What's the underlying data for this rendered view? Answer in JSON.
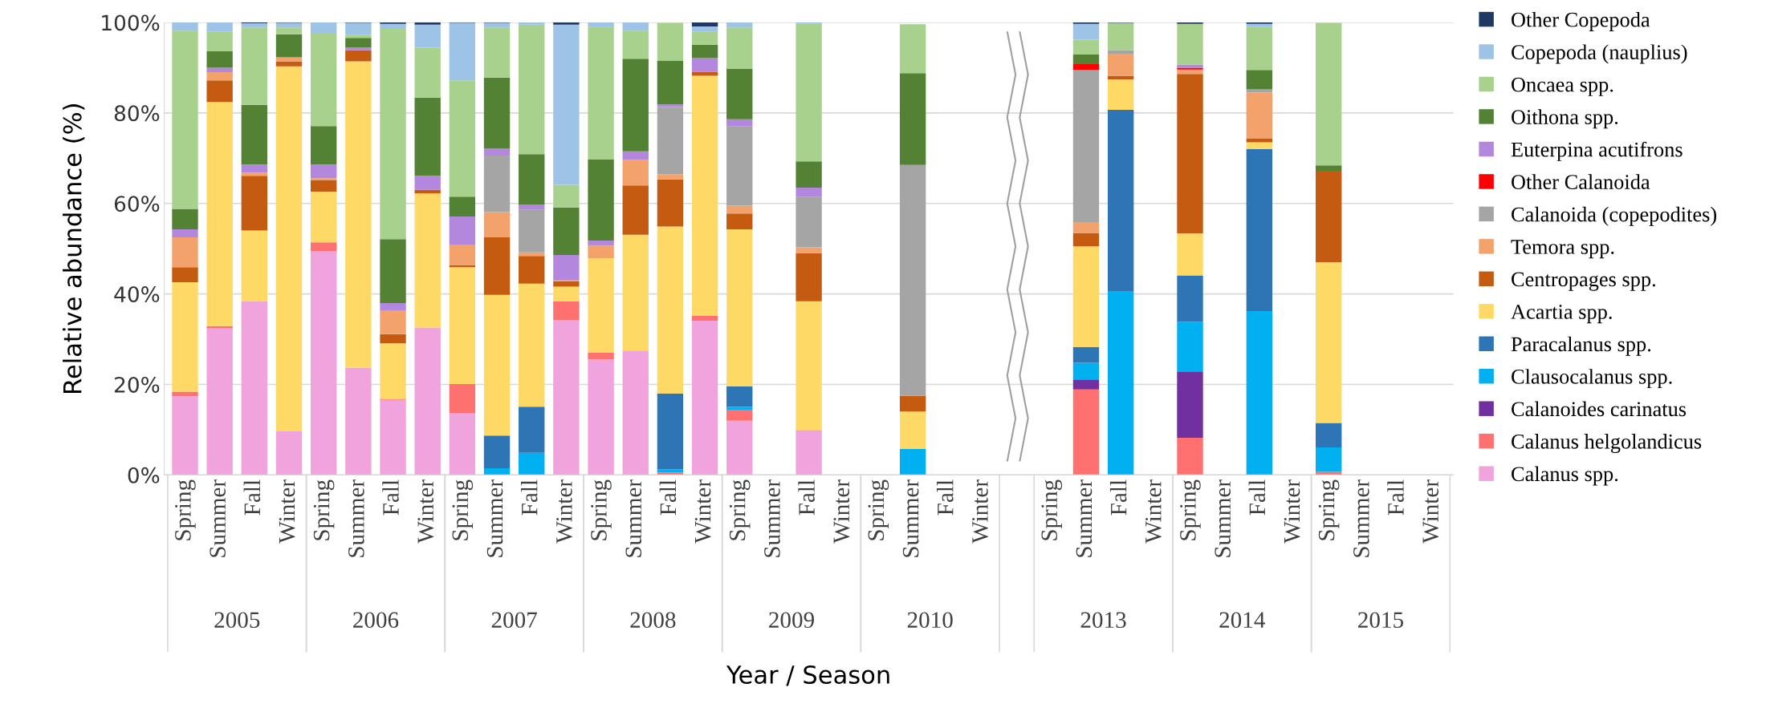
{
  "chart_data": {
    "type": "bar",
    "stacked": true,
    "ylabel": "Relative abundance (%)",
    "xlabel": "Year / Season",
    "categories": [
      "Spring",
      "Summer",
      "Fall",
      "Winter",
      "Spring",
      "Summer",
      "Fall",
      "Winter",
      "Spring",
      "Summer",
      "Fall",
      "Winter",
      "Spring",
      "Summer",
      "Fall",
      "Winter",
      "Spring",
      "Summer",
      "Fall",
      "Winter",
      "Spring",
      "Summer",
      "Fall",
      "Winter",
      null,
      "Spring",
      "Summer",
      "Fall",
      "Winter",
      "Spring",
      "Summer",
      "Fall",
      "Winter",
      "Spring",
      "Summer",
      "Fall",
      "Winter"
    ],
    "annotations": [
      "2005",
      "2006",
      "2007",
      "2008",
      "2009",
      "2010",
      "2013",
      "2014",
      "2015"
    ],
    "ylim": [
      0,
      100
    ],
    "yticks": [
      {
        "value": 0,
        "label": "0%"
      },
      {
        "value": 20,
        "label": "20%"
      },
      {
        "value": 40,
        "label": "40%"
      },
      {
        "value": 60,
        "label": "60%"
      },
      {
        "value": 80,
        "label": "80%"
      },
      {
        "value": 100,
        "label": "100%"
      }
    ],
    "grid": "y",
    "legend": "right",
    "series": [
      {
        "name": "Calanus spp.",
        "color": "#f0a3dc",
        "values": [
          17.4,
          32.4,
          38.4,
          9.7,
          49.5,
          23.7,
          16.6,
          32.6,
          13.7,
          0,
          0,
          34.2,
          25.5,
          27.5,
          0,
          34.1,
          12.0,
          null,
          9.7,
          null,
          null,
          null,
          null,
          null,
          null,
          null,
          0,
          0,
          null,
          0,
          null,
          0,
          null,
          0,
          null,
          null,
          null
        ]
      },
      {
        "name": "Calanus helgolandicus",
        "color": "#ff7070",
        "values": [
          1.0,
          0.5,
          0,
          0,
          1.9,
          0,
          0.2,
          0,
          6.4,
          0,
          0,
          4.2,
          1.5,
          0,
          0.5,
          1.1,
          2.3,
          null,
          0.2,
          null,
          null,
          0,
          null,
          null,
          null,
          null,
          18.9,
          0,
          null,
          8.2,
          null,
          0,
          null,
          0.7,
          null,
          null,
          null
        ]
      },
      {
        "name": "Calanoides carinatus",
        "color": "#7030a0",
        "values": [
          0,
          0,
          0,
          0,
          0,
          0,
          0,
          0,
          0,
          0,
          0,
          0,
          0,
          0,
          0,
          0,
          0,
          null,
          0,
          null,
          null,
          0,
          null,
          null,
          null,
          null,
          2.2,
          0,
          null,
          14.7,
          null,
          0,
          null,
          0,
          null,
          null,
          null
        ]
      },
      {
        "name": "Clausocalanus spp.",
        "color": "#00b0f0",
        "values": [
          0,
          0,
          0,
          0,
          0,
          0,
          0,
          0,
          0,
          1.5,
          4.9,
          0,
          0,
          0,
          0.7,
          0,
          0.8,
          null,
          0,
          null,
          null,
          5.8,
          null,
          null,
          null,
          null,
          3.7,
          40.5,
          null,
          10.9,
          null,
          36.2,
          null,
          5.4,
          null,
          null,
          null
        ]
      },
      {
        "name": "Paracalanus spp.",
        "color": "#2e75b6",
        "values": [
          0,
          0,
          0,
          0,
          0,
          0,
          0,
          0,
          0,
          7.2,
          10.2,
          0,
          0,
          0,
          16.8,
          0,
          4.5,
          null,
          0,
          null,
          null,
          0,
          null,
          null,
          null,
          null,
          3.5,
          40.2,
          null,
          10.3,
          null,
          35.8,
          null,
          5.4,
          null,
          null,
          null
        ]
      },
      {
        "name": "Acartia spp.",
        "color": "#ffd966",
        "values": [
          24.2,
          49.5,
          15.6,
          80.6,
          11.2,
          67.7,
          12.3,
          29.6,
          25.8,
          31.1,
          27.2,
          3.2,
          20.9,
          25.6,
          36.9,
          53.0,
          34.7,
          null,
          28.5,
          null,
          null,
          8.2,
          null,
          null,
          null,
          null,
          22.2,
          6.7,
          null,
          9.3,
          null,
          1.5,
          null,
          35.5,
          null,
          null,
          null
        ]
      },
      {
        "name": "Centropages spp.",
        "color": "#c55a11",
        "values": [
          3.3,
          4.8,
          12.1,
          1.1,
          2.5,
          2.5,
          2.0,
          0.8,
          0.5,
          12.8,
          6.1,
          1.2,
          0,
          10.9,
          10.4,
          0.9,
          3.5,
          null,
          10.6,
          null,
          null,
          3.5,
          null,
          null,
          null,
          null,
          3.0,
          0.8,
          null,
          35.2,
          null,
          0.8,
          null,
          20.2,
          null,
          null,
          null
        ]
      },
      {
        "name": "Temora spp.",
        "color": "#f4a26b",
        "values": [
          6.6,
          1.8,
          0.7,
          0.9,
          0.5,
          0,
          5.3,
          0,
          4.4,
          5.5,
          0.8,
          0.2,
          2.8,
          5.6,
          1.1,
          0,
          1.7,
          null,
          1.3,
          null,
          null,
          0,
          null,
          null,
          null,
          null,
          2.4,
          4.9,
          null,
          1.0,
          null,
          10.2,
          null,
          0,
          null,
          null,
          null
        ]
      },
      {
        "name": "Calanoida (copepodites)",
        "color": "#a5a5a5",
        "values": [
          0,
          0,
          0,
          0,
          0,
          0,
          0,
          0,
          0,
          12.5,
          9.4,
          0,
          0,
          0,
          14.9,
          0,
          17.5,
          null,
          11.1,
          null,
          null,
          51.0,
          null,
          null,
          null,
          null,
          33.6,
          0.8,
          null,
          0,
          null,
          0.7,
          null,
          0,
          null,
          null,
          null
        ]
      },
      {
        "name": "Other Calanoida",
        "color": "#ff0000",
        "values": [
          0,
          0,
          0,
          0,
          0,
          0,
          0,
          0,
          0,
          0,
          0,
          0,
          0,
          0,
          0,
          0,
          0,
          null,
          0,
          null,
          null,
          0,
          null,
          null,
          null,
          null,
          1.3,
          0,
          null,
          0.4,
          null,
          0,
          null,
          0,
          null,
          null,
          null
        ]
      },
      {
        "name": "Euterpina acutifrons",
        "color": "#b387de",
        "values": [
          1.8,
          1.0,
          1.8,
          0,
          3.0,
          0.6,
          1.6,
          3.1,
          6.3,
          1.6,
          1.1,
          5.6,
          1.1,
          1.9,
          0.6,
          3.0,
          1.6,
          null,
          2.1,
          null,
          null,
          0,
          null,
          null,
          null,
          null,
          0,
          0,
          null,
          0.7,
          null,
          0,
          null,
          0,
          null,
          null,
          null
        ]
      },
      {
        "name": "Oithona spp.",
        "color": "#548235",
        "values": [
          4.5,
          3.6,
          13.2,
          5.1,
          8.5,
          2.1,
          14.1,
          17.3,
          4.4,
          15.6,
          11.2,
          10.5,
          17.9,
          20.5,
          9.7,
          3.0,
          11.1,
          null,
          5.8,
          null,
          null,
          20.3,
          null,
          null,
          null,
          null,
          2.1,
          0,
          null,
          0,
          null,
          4.3,
          null,
          1.2,
          null,
          null,
          null
        ]
      },
      {
        "name": "Oncaea spp.",
        "color": "#a9d18e",
        "values": [
          39.4,
          4.4,
          17.1,
          1.5,
          20.6,
          0.6,
          46.5,
          11.0,
          25.7,
          11.1,
          28.6,
          5.0,
          29.3,
          6.2,
          8.3,
          2.8,
          9.2,
          null,
          30.4,
          null,
          null,
          10.8,
          null,
          null,
          null,
          null,
          3.3,
          6.0,
          null,
          9.0,
          null,
          9.5,
          null,
          31.5,
          null,
          null,
          null
        ]
      },
      {
        "name": "Copepoda (nauplius)",
        "color": "#9dc3e6",
        "values": [
          1.8,
          2.0,
          0.9,
          1.0,
          2.3,
          2.7,
          1.1,
          5.1,
          12.7,
          1.0,
          0.5,
          35.4,
          1.0,
          1.8,
          null,
          1.2,
          1.1,
          null,
          0.3,
          null,
          null,
          null,
          null,
          null,
          null,
          null,
          3.5,
          0,
          null,
          0,
          null,
          0.7,
          null,
          null,
          null,
          null,
          null
        ]
      },
      {
        "name": "Other Copepoda",
        "color": "#1f3864",
        "values": [
          0,
          0,
          0.2,
          0.1,
          0,
          0.1,
          0.3,
          0.5,
          0.1,
          0.1,
          0,
          0.5,
          0,
          0,
          0,
          0.9,
          0,
          null,
          0,
          null,
          null,
          0,
          null,
          null,
          null,
          null,
          0.3,
          0.1,
          null,
          0.3,
          null,
          0.3,
          null,
          0,
          null,
          null,
          null
        ]
      }
    ]
  }
}
